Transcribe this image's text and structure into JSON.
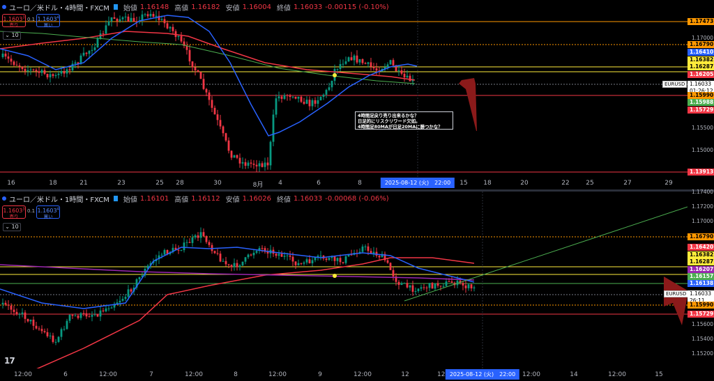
{
  "colors": {
    "up": "#089981",
    "down": "#f23645",
    "ma_blue": "#2962ff",
    "ma_red": "#f23645",
    "ma_green": "#4caf50",
    "ma_purple": "#9c27b0",
    "hline_yellow": "#ffeb3b",
    "hline_orange": "#ff9800",
    "hline_red": "#f23645",
    "arrow": "#8b1a1a"
  },
  "pane1": {
    "title": "ユーロ／米ドル・4時間・FXCM",
    "ohlc": {
      "o_label": "始値",
      "o": "1.16148",
      "h_label": "高値",
      "h": "1.16182",
      "l_label": "安値",
      "l": "1.16004",
      "c_label": "終値",
      "c": "1.16033",
      "chg": "-0.00115 (-0.10%)"
    },
    "sell": {
      "price": "1.1603",
      "sup": "3",
      "label": "売り"
    },
    "buy": {
      "price": "1.1603",
      "sup": "4",
      "label": "買い"
    },
    "spread": "0.1",
    "qty": "10",
    "symbol": "EURUSD",
    "current": {
      "price": "1.16033",
      "countdown": "01:26:12"
    },
    "price_labels": [
      {
        "v": "1.17473",
        "c": "#ff9800",
        "y": 31
      },
      {
        "v": "1.16790",
        "c": "#ff9800",
        "y": 64
      },
      {
        "v": "1.16410",
        "c": "#2962ff",
        "y": 75,
        "fc": "#fff"
      },
      {
        "v": "1.16382",
        "c": "#ffeb3b",
        "y": 86
      },
      {
        "v": "1.16287",
        "c": "#ffeb3b",
        "y": 96
      },
      {
        "v": "1.16205",
        "c": "#f23645",
        "y": 107,
        "fc": "#fff"
      },
      {
        "v": "1.15990",
        "c": "#ff9800",
        "y": 137
      },
      {
        "v": "1.15988",
        "c": "#4caf50",
        "y": 147,
        "fc": "#fff"
      },
      {
        "v": "1.15729",
        "c": "#f23645",
        "y": 158,
        "fc": "#fff"
      },
      {
        "v": "1.13913",
        "c": "#f23645",
        "y": 247,
        "fc": "#fff"
      }
    ],
    "ticks": [
      {
        "v": "1.17000",
        "y": 54
      },
      {
        "v": "1.15500",
        "y": 183
      },
      {
        "v": "1.15000",
        "y": 215
      }
    ],
    "ticks2": [
      {
        "v": "1.14500",
        "y": 216
      }
    ],
    "xticks": [
      {
        "t": "16",
        "x": 16
      },
      {
        "t": "18",
        "x": 76
      },
      {
        "t": "21",
        "x": 120
      },
      {
        "t": "23",
        "x": 174
      },
      {
        "t": "25",
        "x": 229
      },
      {
        "t": "28",
        "x": 258
      },
      {
        "t": "30",
        "x": 312
      },
      {
        "t": "8月",
        "x": 370
      },
      {
        "t": "4",
        "x": 402
      },
      {
        "t": "6",
        "x": 457
      },
      {
        "t": "8",
        "x": 516
      },
      {
        "t": "11",
        "x": 551
      },
      {
        "t": "15",
        "x": 665
      },
      {
        "t": "18",
        "x": 699
      },
      {
        "t": "20",
        "x": 752
      },
      {
        "t": "22",
        "x": 811
      },
      {
        "t": "25",
        "x": 846
      },
      {
        "t": "27",
        "x": 900
      },
      {
        "t": "29",
        "x": 959
      }
    ],
    "xsel": {
      "t": "2025-08-12 (火)　22:00",
      "x": 599
    },
    "note": [
      "4時間足戻り売り出来るかな？",
      "日足的にリスクリワード欠如。",
      "4時間足80MAが日足20MAに勝つかな？"
    ]
  },
  "pane2": {
    "title": "ユーロ／米ドル・1時間・FXCM",
    "ohlc": {
      "o_label": "始値",
      "o": "1.16101",
      "h_label": "高値",
      "h": "1.16112",
      "l_label": "安値",
      "l": "1.16026",
      "c_label": "終値",
      "c": "1.16033",
      "chg": "-0.00068 (-0.06%)"
    },
    "sell": {
      "price": "1.1603",
      "sup": "3",
      "label": "売り"
    },
    "buy": {
      "price": "1.1603",
      "sup": "4",
      "label": "買い"
    },
    "spread": "0.1",
    "qty": "10",
    "symbol": "EURUSD",
    "current": {
      "price": "1.16033",
      "countdown": "26:11"
    },
    "price_labels": [
      {
        "v": "1.16790",
        "c": "#ff9800",
        "y": 65
      },
      {
        "v": "1.16420",
        "c": "#f23645",
        "y": 80,
        "fc": "#fff"
      },
      {
        "v": "1.16382",
        "c": "#ffeb3b",
        "y": 91
      },
      {
        "v": "1.16287",
        "c": "#ffeb3b",
        "y": 101
      },
      {
        "v": "1.16207",
        "c": "#9c27b0",
        "y": 112,
        "fc": "#fff"
      },
      {
        "v": "1.16157",
        "c": "#4caf50",
        "y": 122,
        "fc": "#fff"
      },
      {
        "v": "1.16138",
        "c": "#2962ff",
        "y": 132,
        "fc": "#fff"
      },
      {
        "v": "1.15990",
        "c": "#ff9800",
        "y": 163
      },
      {
        "v": "1.15729",
        "c": "#f23645",
        "y": 176,
        "fc": "#fff"
      }
    ],
    "ticks": [
      {
        "v": "1.17400",
        "y": 0
      },
      {
        "v": "1.17200",
        "y": 21
      },
      {
        "v": "1.17000",
        "y": 42
      },
      {
        "v": "1.15600",
        "y": 190
      },
      {
        "v": "1.15400",
        "y": 211
      },
      {
        "v": "1.15200",
        "y": 232
      }
    ],
    "xticks": [
      {
        "t": "12:00",
        "x": 33
      },
      {
        "t": "6",
        "x": 94
      },
      {
        "t": "12:00",
        "x": 155
      },
      {
        "t": "7",
        "x": 217
      },
      {
        "t": "12:00",
        "x": 278
      },
      {
        "t": "8",
        "x": 338
      },
      {
        "t": "12:00",
        "x": 398
      },
      {
        "t": "9",
        "x": 459
      },
      {
        "t": "12:00",
        "x": 520
      },
      {
        "t": "12",
        "x": 581
      },
      {
        "t": "12:00",
        "x": 640
      },
      {
        "t": "12:00",
        "x": 762
      },
      {
        "t": "14",
        "x": 823
      },
      {
        "t": "12:00",
        "x": 885
      },
      {
        "t": "15",
        "x": 945
      }
    ],
    "xsel": {
      "t": "2025-08-12 (火)　22:00",
      "x": 692
    }
  }
}
